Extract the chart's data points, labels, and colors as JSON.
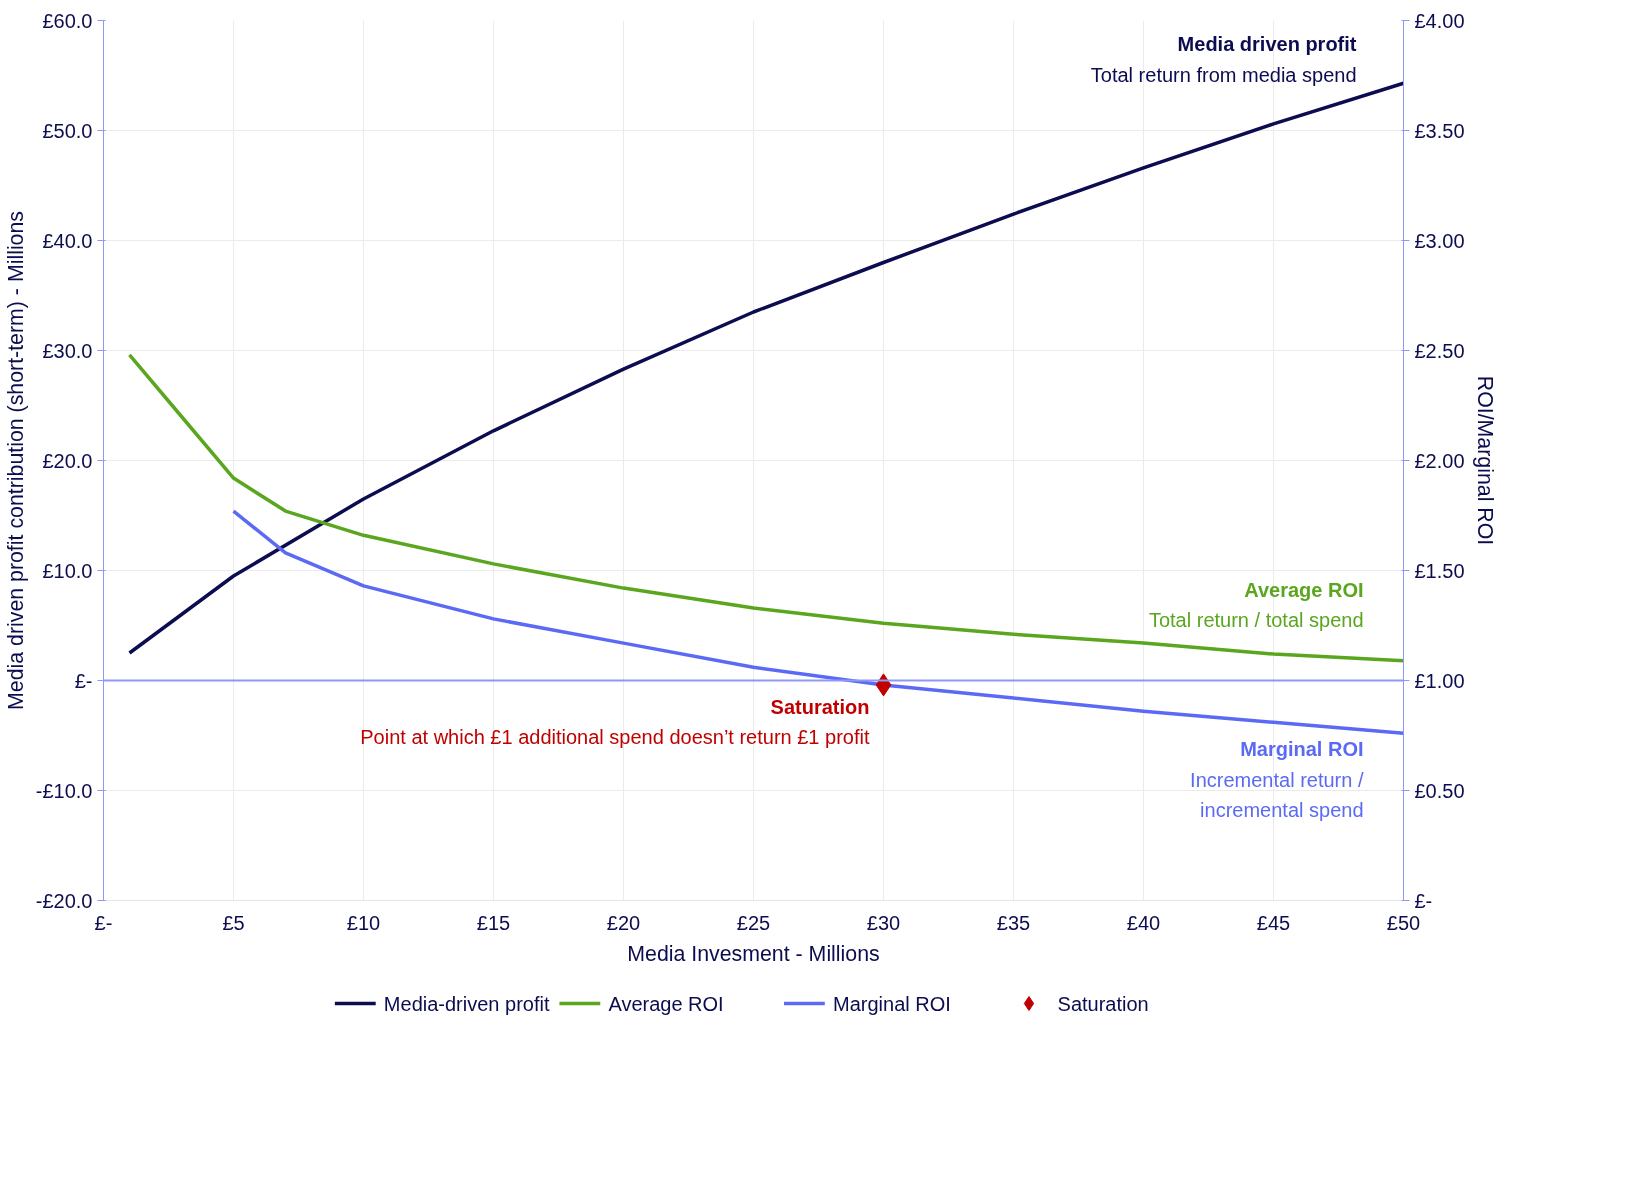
{
  "chart_data": {
    "type": "line",
    "xlabel": "Media Invesment - Millions",
    "ylabel": "Media driven profit contribution (short-term) - Millions",
    "y2label": "ROI/Marginal ROI",
    "x": [
      1,
      5,
      10,
      15,
      20,
      25,
      30,
      35,
      40,
      45,
      50
    ],
    "series": [
      {
        "name": "Media-driven profit",
        "color": "#0c0c50",
        "values": [
          2.5,
          9.5,
          16.5,
          22.7,
          28.3,
          33.5,
          38.0,
          42.4,
          46.6,
          50.6,
          54.3
        ]
      },
      {
        "name": "Average ROI",
        "color": "#5aa61e",
        "axis": "y2",
        "x": [
          1,
          3,
          5,
          7,
          10,
          15,
          20,
          25,
          30,
          35,
          40,
          45,
          50
        ],
        "values": [
          2.48,
          2.2,
          1.92,
          1.77,
          1.66,
          1.53,
          1.42,
          1.33,
          1.26,
          1.21,
          1.17,
          1.12,
          1.09
        ]
      },
      {
        "name": "Marginal ROI",
        "color": "#5b6af5",
        "axis": "y2",
        "x": [
          5,
          7,
          10,
          15,
          20,
          25,
          30,
          35,
          40,
          45,
          50
        ],
        "values": [
          1.77,
          1.58,
          1.43,
          1.28,
          1.17,
          1.06,
          0.98,
          0.92,
          0.86,
          0.81,
          0.76
        ]
      },
      {
        "name": "Saturation",
        "type": "scatter",
        "marker": "diamond",
        "color": "#c00000",
        "axis": "y2",
        "x": [
          30
        ],
        "values": [
          0.98
        ]
      }
    ],
    "xlim": [
      0,
      50
    ],
    "xticks": [
      {
        "value": 0,
        "label": "£-"
      },
      {
        "value": 5,
        "label": "£5"
      },
      {
        "value": 10,
        "label": "£10"
      },
      {
        "value": 15,
        "label": "£15"
      },
      {
        "value": 20,
        "label": "£20"
      },
      {
        "value": 25,
        "label": "£25"
      },
      {
        "value": 30,
        "label": "£30"
      },
      {
        "value": 35,
        "label": "£35"
      },
      {
        "value": 40,
        "label": "£40"
      },
      {
        "value": 45,
        "label": "£45"
      },
      {
        "value": 50,
        "label": "£50"
      }
    ],
    "ylim": [
      -20,
      60
    ],
    "yticks": [
      {
        "value": -20,
        "label": "-£20.0"
      },
      {
        "value": -10,
        "label": "-£10.0"
      },
      {
        "value": 0,
        "label": "£-"
      },
      {
        "value": 10,
        "label": "£10.0"
      },
      {
        "value": 20,
        "label": "£20.0"
      },
      {
        "value": 30,
        "label": "£30.0"
      },
      {
        "value": 40,
        "label": "£40.0"
      },
      {
        "value": 50,
        "label": "£50.0"
      },
      {
        "value": 60,
        "label": "£60.0"
      }
    ],
    "y2lim": [
      0,
      4
    ],
    "y2ticks": [
      {
        "value": 0,
        "label": "£-"
      },
      {
        "value": 0.5,
        "label": "£0.50"
      },
      {
        "value": 1,
        "label": "£1.00"
      },
      {
        "value": 1.5,
        "label": "£1.50"
      },
      {
        "value": 2,
        "label": "£2.00"
      },
      {
        "value": 2.5,
        "label": "£2.50"
      },
      {
        "value": 3,
        "label": "£3.00"
      },
      {
        "value": 3.5,
        "label": "£3.50"
      },
      {
        "value": 4,
        "label": "£4.00"
      }
    ],
    "ref_lines": [
      {
        "axis": "y2",
        "value": 1,
        "color": "#8f98f5"
      }
    ],
    "annotations": [
      "Media driven profit",
      "Total return from media spend",
      "Average ROI",
      "Total return / total spend",
      "Saturation",
      "Point at which £1 additional spend doesn’t return £1 profit",
      "Marginal ROI",
      "Incremental return /",
      "incremental spend"
    ],
    "grid": true,
    "legend": "bottom",
    "line_style": "solid"
  }
}
